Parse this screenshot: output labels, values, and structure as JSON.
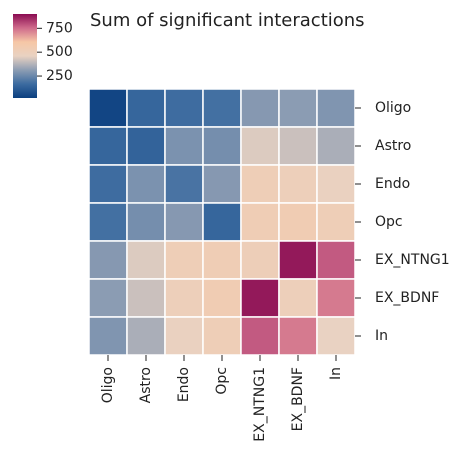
{
  "chart_data": {
    "type": "heatmap",
    "title": "Sum of significant interactions",
    "rows": [
      "Oligo",
      "Astro",
      "Endo",
      "Opc",
      "EX_NTNG1",
      "EX_BDNF",
      "In"
    ],
    "columns": [
      "Oligo",
      "Astro",
      "Endo",
      "Opc",
      "EX_NTNG1",
      "EX_BDNF",
      "In"
    ],
    "values": [
      [
        40,
        150,
        170,
        180,
        300,
        310,
        290
      ],
      [
        150,
        140,
        280,
        270,
        440,
        410,
        360
      ],
      [
        170,
        280,
        190,
        300,
        520,
        500,
        470
      ],
      [
        180,
        270,
        300,
        150,
        530,
        540,
        520
      ],
      [
        300,
        440,
        520,
        530,
        510,
        880,
        780
      ],
      [
        310,
        410,
        500,
        540,
        880,
        500,
        730
      ],
      [
        290,
        360,
        470,
        520,
        780,
        730,
        460
      ]
    ],
    "clim": [
      20,
      900
    ],
    "cticks": [
      250,
      500,
      750
    ],
    "colormap": [
      "#0b3f7f",
      "#3c6ba0",
      "#8d9db3",
      "#e9d2c2",
      "#f6c7a6",
      "#cf6b8b",
      "#8a0c52"
    ]
  }
}
